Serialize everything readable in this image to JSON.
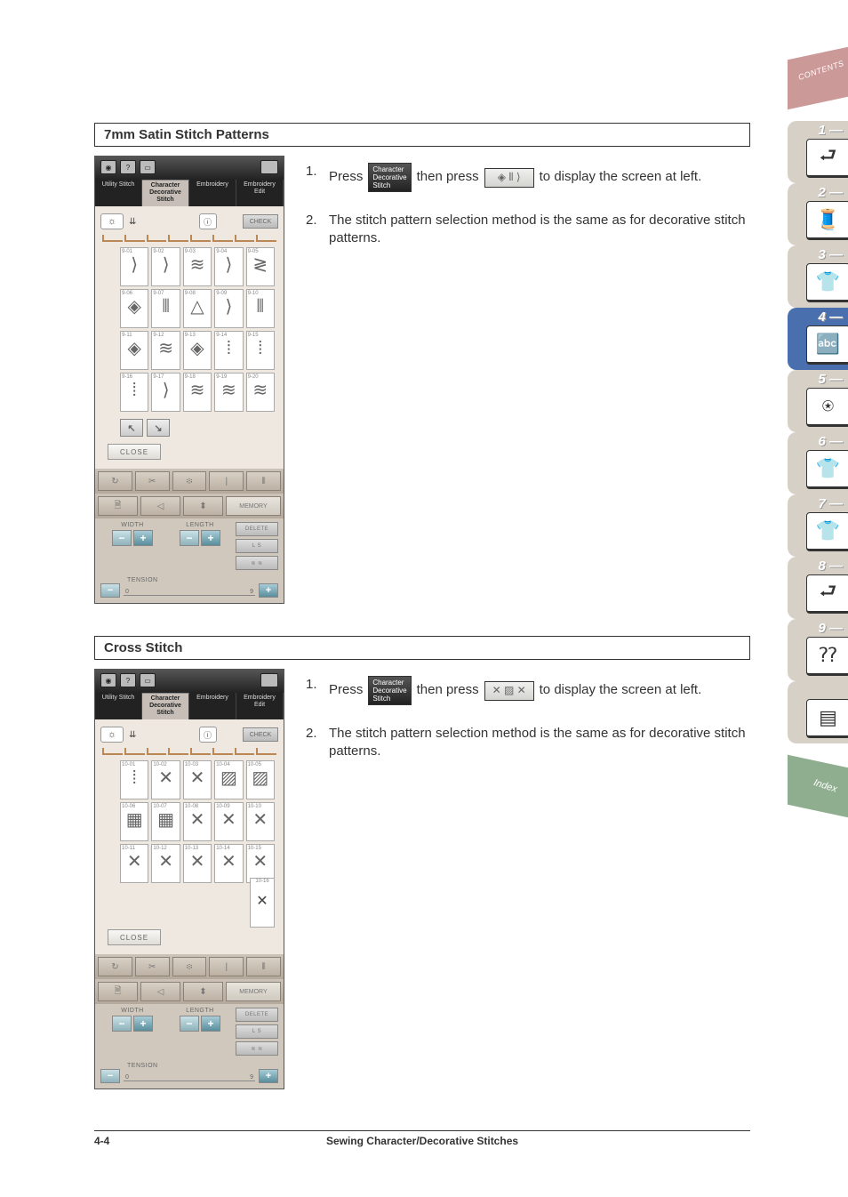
{
  "page": {
    "number": "4-4",
    "footer_title": "Sewing Character/Decorative Stitches"
  },
  "section1": {
    "title": "7mm Satin Stitch Patterns",
    "step1_pre": "Press",
    "step1_btn1": "Character\nDecorative\nStitch",
    "step1_mid": "then press",
    "step1_post": "to display the screen at left.",
    "step2": "The stitch pattern selection method is the same as for decorative stitch patterns."
  },
  "section2": {
    "title": "Cross Stitch",
    "step1_pre": "Press",
    "step1_btn1": "Character\nDecorative\nStitch",
    "step1_mid": "then press",
    "step1_post": "to display the screen at left.",
    "step2": "The stitch pattern selection method is the same as for decorative stitch patterns."
  },
  "screen": {
    "tabs": [
      "Utility Stitch",
      "Character Decorative Stitch",
      "Embroidery",
      "Embroidery Edit"
    ],
    "active_tab": 1,
    "check_label": "CHECK",
    "close_label": "CLOSE",
    "width_label": "WIDTH",
    "length_label": "LENGTH",
    "tension_label": "TENSION",
    "tension_min": "0",
    "tension_max": "9",
    "memory_label": "MEMORY",
    "delete_label": "DELETE",
    "ls_label": "L   S",
    "satin_prefix": "9",
    "satin_glyphs": [
      "⟩",
      "⟩",
      "≋",
      "⟩",
      "≷",
      "◈",
      "⦀",
      "△",
      "⟩",
      "⦀",
      "◈",
      "≋",
      "◈",
      "⁞",
      "⁞",
      "⁞",
      "⟩",
      "≋",
      "≋",
      "≋"
    ],
    "cross_prefix": "10",
    "cross_glyphs": [
      "⁞",
      "✕",
      "✕",
      "▨",
      "▨",
      "▦",
      "▦",
      "✕",
      "✕",
      "✕",
      "✕",
      "✕",
      "✕",
      "✕",
      "✕"
    ],
    "cross_extra_num": "10-16",
    "cross_extra_glyph": "✕"
  },
  "sidetabs": {
    "contents": "CONTENTS",
    "index": "Index",
    "items": [
      {
        "n": "1 —",
        "glyph": "⮐",
        "color": "#333"
      },
      {
        "n": "2 —",
        "glyph": "🧵",
        "color": "#333"
      },
      {
        "n": "3 —",
        "glyph": "👕",
        "color": "#c33"
      },
      {
        "n": "4 —",
        "glyph": "🔤",
        "color": "#335",
        "active": true
      },
      {
        "n": "5 —",
        "glyph": "⍟",
        "color": "#333"
      },
      {
        "n": "6 —",
        "glyph": "👕",
        "color": "#333"
      },
      {
        "n": "7 —",
        "glyph": "👕",
        "color": "#333"
      },
      {
        "n": "8 —",
        "glyph": "⮐",
        "color": "#333"
      },
      {
        "n": "9 —",
        "glyph": "⁇",
        "color": "#333"
      },
      {
        "n": "",
        "glyph": "▤",
        "color": "#333"
      }
    ]
  }
}
